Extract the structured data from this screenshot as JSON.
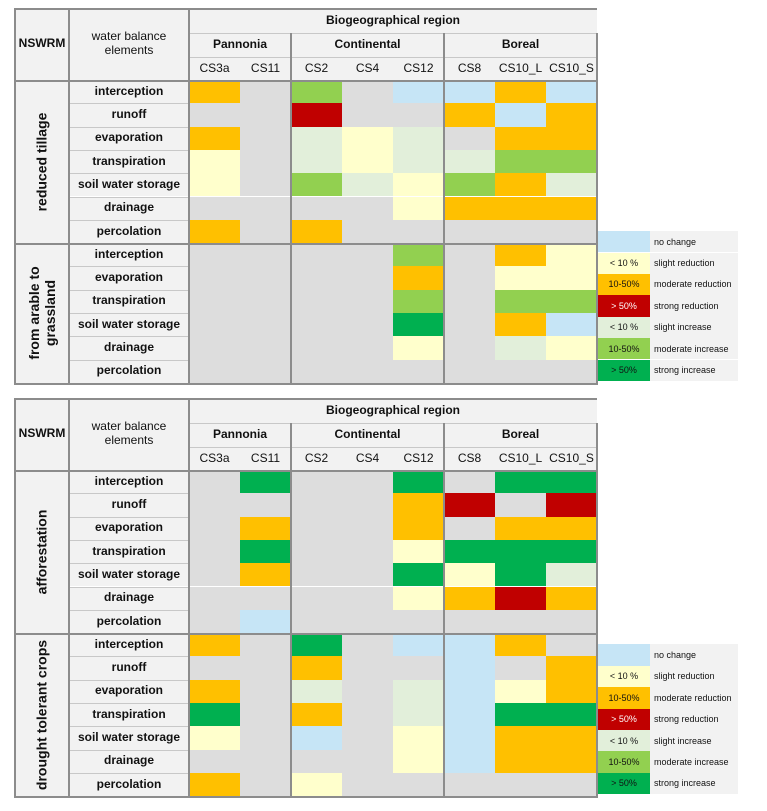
{
  "legend": {
    "items": [
      {
        "key": "nc",
        "color": "#c6e5f6",
        "description": "no change"
      },
      {
        "key": "sr",
        "color": "#ffffcc",
        "label": "< 10 %",
        "description": "slight reduction"
      },
      {
        "key": "mr",
        "color": "#ffc000",
        "label": "10-50%",
        "description": "moderate reduction"
      },
      {
        "key": "str",
        "color": "#c00000",
        "label": "> 50%",
        "description": "strong reduction"
      },
      {
        "key": "si",
        "color": "#e2efda",
        "label": "< 10 %",
        "description": "slight increase"
      },
      {
        "key": "mi",
        "color": "#92d050",
        "label": "10-50%",
        "description": "moderate increase"
      },
      {
        "key": "sti",
        "color": "#00b050",
        "label": "> 50%",
        "description": "strong increase"
      }
    ]
  },
  "tables": [
    {
      "header": {
        "nswrm": "NSWRM",
        "elements": "water balance elements",
        "region": "Biogeographical region"
      },
      "groups": [
        {
          "name": "Pannonia",
          "cases": [
            "CS3a",
            "CS11"
          ]
        },
        {
          "name": "Continental",
          "cases": [
            "CS2",
            "CS4",
            "CS12"
          ]
        },
        {
          "name": "Boreal",
          "cases": [
            "CS8",
            "CS10_L",
            "CS10_S"
          ]
        }
      ],
      "measures": [
        {
          "name": "reduced tillage",
          "rows": [
            {
              "element": "interception",
              "cells": [
                "mr",
                null,
                "mi",
                null,
                "nc",
                "nc",
                "mr",
                "nc"
              ]
            },
            {
              "element": "runoff",
              "cells": [
                null,
                null,
                "str",
                null,
                null,
                "mr",
                "nc",
                "mr"
              ]
            },
            {
              "element": "evaporation",
              "cells": [
                "mr",
                null,
                "si",
                "sr",
                "si",
                null,
                "mr",
                "mr"
              ]
            },
            {
              "element": "transpiration",
              "cells": [
                "sr",
                null,
                "si",
                "sr",
                "si",
                "si",
                "mi",
                "mi"
              ]
            },
            {
              "element": "soil water storage",
              "cells": [
                "sr",
                null,
                "mi",
                "si",
                "sr",
                "mi",
                "mr",
                "si"
              ]
            },
            {
              "element": "drainage",
              "cells": [
                null,
                null,
                null,
                null,
                "sr",
                "mr",
                "mr",
                "mr"
              ]
            },
            {
              "element": "percolation",
              "cells": [
                "mr",
                null,
                "mr",
                null,
                null,
                null,
                null,
                null
              ]
            }
          ]
        },
        {
          "name": "from arable to grassland",
          "rows": [
            {
              "element": "interception",
              "cells": [
                null,
                null,
                null,
                null,
                "mi",
                null,
                "mr",
                "sr"
              ]
            },
            {
              "element": "evaporation",
              "cells": [
                null,
                null,
                null,
                null,
                "mr",
                null,
                "sr",
                "sr"
              ]
            },
            {
              "element": "transpiration",
              "cells": [
                null,
                null,
                null,
                null,
                "mi",
                null,
                "mi",
                "mi"
              ]
            },
            {
              "element": "soil water storage",
              "cells": [
                null,
                null,
                null,
                null,
                "sti",
                null,
                "mr",
                "nc"
              ]
            },
            {
              "element": "drainage",
              "cells": [
                null,
                null,
                null,
                null,
                "sr",
                null,
                "si",
                "sr"
              ]
            },
            {
              "element": "percolation",
              "cells": [
                null,
                null,
                null,
                null,
                null,
                null,
                null,
                null
              ]
            }
          ]
        }
      ]
    },
    {
      "header": {
        "nswrm": "NSWRM",
        "elements": "water balance elements",
        "region": "Biogeographical region"
      },
      "groups": [
        {
          "name": "Pannonia",
          "cases": [
            "CS3a",
            "CS11"
          ]
        },
        {
          "name": "Continental",
          "cases": [
            "CS2",
            "CS4",
            "CS12"
          ]
        },
        {
          "name": "Boreal",
          "cases": [
            "CS8",
            "CS10_L",
            "CS10_S"
          ]
        }
      ],
      "measures": [
        {
          "name": "afforestation",
          "rows": [
            {
              "element": "interception",
              "cells": [
                null,
                "sti",
                null,
                null,
                "sti",
                null,
                "sti",
                "sti"
              ]
            },
            {
              "element": "runoff",
              "cells": [
                null,
                null,
                null,
                null,
                "mr",
                "str",
                null,
                "str"
              ]
            },
            {
              "element": "evaporation",
              "cells": [
                null,
                "mr",
                null,
                null,
                "mr",
                null,
                "mr",
                "mr"
              ]
            },
            {
              "element": "transpiration",
              "cells": [
                null,
                "sti",
                null,
                null,
                "sr",
                "sti",
                "sti",
                "sti"
              ]
            },
            {
              "element": "soil water storage",
              "cells": [
                null,
                "mr",
                null,
                null,
                "sti",
                "sr",
                "sti",
                "si"
              ]
            },
            {
              "element": "drainage",
              "cells": [
                null,
                null,
                null,
                null,
                "sr",
                "mr",
                "str",
                "mr"
              ]
            },
            {
              "element": "percolation",
              "cells": [
                null,
                "nc",
                null,
                null,
                null,
                null,
                null,
                null
              ]
            }
          ]
        },
        {
          "name": "drought tolerant crops",
          "rows": [
            {
              "element": "interception",
              "cells": [
                "mr",
                null,
                "sti",
                null,
                "nc",
                "nc",
                "mr",
                null
              ]
            },
            {
              "element": "runoff",
              "cells": [
                null,
                null,
                "mr",
                null,
                null,
                "nc",
                null,
                "mr"
              ]
            },
            {
              "element": "evaporation",
              "cells": [
                "mr",
                null,
                "si",
                null,
                "si",
                "nc",
                "sr",
                "mr"
              ]
            },
            {
              "element": "transpiration",
              "cells": [
                "sti",
                null,
                "mr",
                null,
                "si",
                "nc",
                "sti",
                "sti"
              ]
            },
            {
              "element": "soil water storage",
              "cells": [
                "sr",
                null,
                "nc",
                null,
                "sr",
                "nc",
                "mr",
                "mr"
              ]
            },
            {
              "element": "drainage",
              "cells": [
                null,
                null,
                null,
                null,
                "sr",
                "nc",
                "mr",
                "mr"
              ]
            },
            {
              "element": "percolation",
              "cells": [
                "mr",
                null,
                "sr",
                null,
                null,
                null,
                null,
                null
              ]
            }
          ]
        }
      ]
    }
  ]
}
